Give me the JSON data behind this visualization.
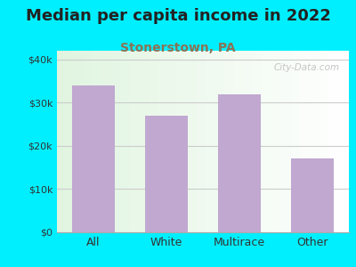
{
  "title": "Median per capita income in 2022",
  "subtitle": "Stonerstown, PA",
  "categories": [
    "All",
    "White",
    "Multirace",
    "Other"
  ],
  "values": [
    34000,
    27000,
    32000,
    17000
  ],
  "bar_color": "#c0a8d0",
  "title_fontsize": 13,
  "subtitle_fontsize": 10,
  "subtitle_color": "#8b7355",
  "background_outer": "#00efff",
  "ylim": [
    0,
    42000
  ],
  "yticks": [
    0,
    10000,
    20000,
    30000,
    40000
  ],
  "ytick_labels": [
    "$0",
    "$10k",
    "$20k",
    "$30k",
    "$40k"
  ],
  "watermark": "City-Data.com",
  "grid_color": "#cccccc",
  "axis_color": "#aaaaaa"
}
